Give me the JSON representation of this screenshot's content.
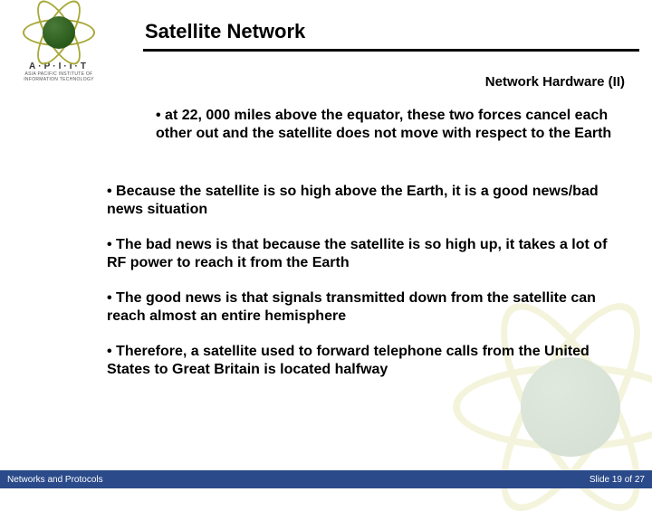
{
  "header": {
    "title": "Satellite Network",
    "subtitle": "Network Hardware (II)",
    "logo_letters": "A·P·I·I·T",
    "logo_subtext": "ASIA PACIFIC INSTITUTE OF INFORMATION TECHNOLOGY"
  },
  "bullets_first": [
    "• at 22, 000 miles above the equator, these two forces cancel each other out and the satellite does not move with respect to the Earth"
  ],
  "bullets_rest": [
    "• Because the satellite is so high above the Earth, it is a good news/bad news situation",
    "• The bad news is that because the satellite is so high up, it takes a lot of RF power to reach it from the Earth",
    "• The good news is that signals transmitted down from the satellite can reach almost an entire hemisphere",
    "• Therefore, a satellite used to forward telephone calls from the United States to Great Britain is located halfway"
  ],
  "footer": {
    "left": "Networks and Protocols",
    "right": "Slide 19 of 27"
  },
  "colors": {
    "footer_bg": "#2a4a8a",
    "rule": "#000000",
    "logo_ring": "#a8a838",
    "globe": "#2a5a1a"
  }
}
